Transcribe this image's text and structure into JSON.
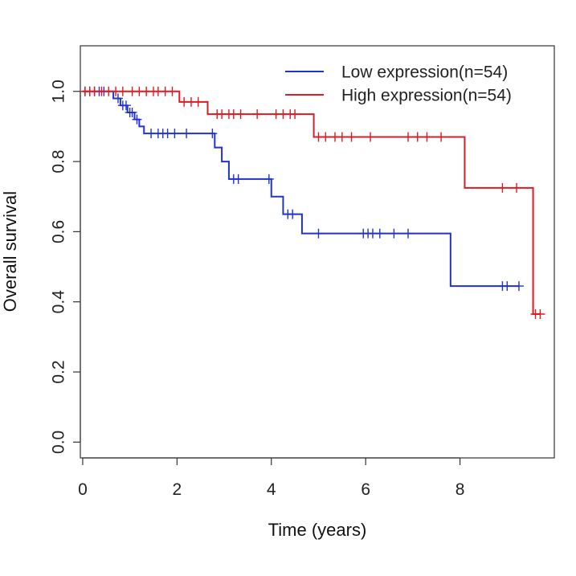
{
  "chart_data": {
    "type": "line",
    "xlabel": "Time (years)",
    "ylabel": "Overall survival",
    "xlim": [
      -0.05,
      10.0
    ],
    "ylim": [
      -0.045,
      1.13
    ],
    "xticks": [
      "0",
      "2",
      "4",
      "6",
      "8"
    ],
    "xtick_values": [
      0,
      2,
      4,
      6,
      8
    ],
    "yticks": [
      "0.0",
      "0.2",
      "0.4",
      "0.6",
      "0.8",
      "1.0"
    ],
    "ytick_values": [
      0,
      0.2,
      0.4,
      0.6,
      0.8,
      1.0
    ],
    "legend_position": "top-right",
    "series": [
      {
        "name": "Low expression(n=54)",
        "color": "#2233cc",
        "steps": [
          [
            0,
            1.0
          ],
          [
            0.65,
            0.98
          ],
          [
            0.8,
            0.96
          ],
          [
            0.95,
            0.94
          ],
          [
            1.1,
            0.92
          ],
          [
            1.2,
            0.9
          ],
          [
            1.3,
            0.88
          ],
          [
            2.8,
            0.84
          ],
          [
            2.95,
            0.8
          ],
          [
            3.1,
            0.75
          ],
          [
            4.0,
            0.7
          ],
          [
            4.25,
            0.65
          ],
          [
            4.65,
            0.595
          ],
          [
            7.8,
            0.445
          ],
          [
            9.25,
            0.445
          ]
        ],
        "censored": [
          [
            0.05,
            1.0
          ],
          [
            0.15,
            1.0
          ],
          [
            0.25,
            1.0
          ],
          [
            0.35,
            1.0
          ],
          [
            0.45,
            1.0
          ],
          [
            0.75,
            0.98
          ],
          [
            0.85,
            0.96
          ],
          [
            0.92,
            0.96
          ],
          [
            1.0,
            0.94
          ],
          [
            1.05,
            0.94
          ],
          [
            1.15,
            0.92
          ],
          [
            1.45,
            0.88
          ],
          [
            1.6,
            0.88
          ],
          [
            1.7,
            0.88
          ],
          [
            1.8,
            0.88
          ],
          [
            1.95,
            0.88
          ],
          [
            2.2,
            0.88
          ],
          [
            2.75,
            0.88
          ],
          [
            3.2,
            0.75
          ],
          [
            3.3,
            0.75
          ],
          [
            3.95,
            0.75
          ],
          [
            4.35,
            0.65
          ],
          [
            4.45,
            0.65
          ],
          [
            5.0,
            0.595
          ],
          [
            5.95,
            0.595
          ],
          [
            6.05,
            0.595
          ],
          [
            6.15,
            0.595
          ],
          [
            6.3,
            0.595
          ],
          [
            6.6,
            0.595
          ],
          [
            6.9,
            0.595
          ],
          [
            8.9,
            0.445
          ],
          [
            9.0,
            0.445
          ],
          [
            9.25,
            0.445
          ]
        ]
      },
      {
        "name": "High expression(n=54)",
        "color": "#dd1c22",
        "steps": [
          [
            0,
            1.0
          ],
          [
            2.05,
            0.97
          ],
          [
            2.65,
            0.935
          ],
          [
            4.9,
            0.87
          ],
          [
            8.1,
            0.725
          ],
          [
            9.55,
            0.365
          ],
          [
            9.7,
            0.365
          ]
        ],
        "censored": [
          [
            0.05,
            1.0
          ],
          [
            0.15,
            1.0
          ],
          [
            0.25,
            1.0
          ],
          [
            0.4,
            1.0
          ],
          [
            0.55,
            1.0
          ],
          [
            0.7,
            1.0
          ],
          [
            0.85,
            1.0
          ],
          [
            1.05,
            1.0
          ],
          [
            1.2,
            1.0
          ],
          [
            1.35,
            1.0
          ],
          [
            1.5,
            1.0
          ],
          [
            1.6,
            1.0
          ],
          [
            1.75,
            1.0
          ],
          [
            1.9,
            1.0
          ],
          [
            2.15,
            0.97
          ],
          [
            2.3,
            0.97
          ],
          [
            2.45,
            0.97
          ],
          [
            2.85,
            0.935
          ],
          [
            2.95,
            0.935
          ],
          [
            3.1,
            0.935
          ],
          [
            3.2,
            0.935
          ],
          [
            3.35,
            0.935
          ],
          [
            3.7,
            0.935
          ],
          [
            4.1,
            0.935
          ],
          [
            4.25,
            0.935
          ],
          [
            4.4,
            0.935
          ],
          [
            4.5,
            0.935
          ],
          [
            5.0,
            0.87
          ],
          [
            5.15,
            0.87
          ],
          [
            5.35,
            0.87
          ],
          [
            5.5,
            0.87
          ],
          [
            5.7,
            0.87
          ],
          [
            6.1,
            0.87
          ],
          [
            6.9,
            0.87
          ],
          [
            7.1,
            0.87
          ],
          [
            7.3,
            0.87
          ],
          [
            7.6,
            0.87
          ],
          [
            8.9,
            0.725
          ],
          [
            9.2,
            0.725
          ],
          [
            9.6,
            0.365
          ],
          [
            9.7,
            0.365
          ]
        ]
      }
    ]
  }
}
